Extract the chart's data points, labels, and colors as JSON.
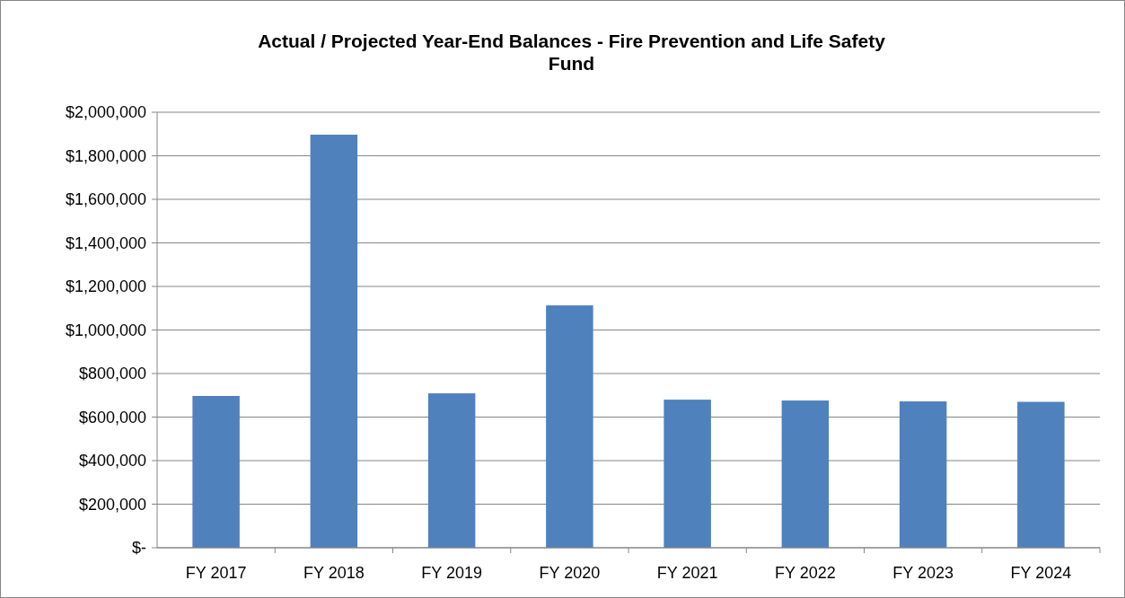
{
  "chart_data": {
    "type": "bar",
    "title": "Actual / Projected Year-End Balances - Fire Prevention and Life Safety Fund",
    "categories": [
      "FY 2017",
      "FY 2018",
      "FY 2019",
      "FY 2020",
      "FY 2021",
      "FY 2022",
      "FY 2023",
      "FY 2024"
    ],
    "values": [
      697000,
      1897000,
      709000,
      1113000,
      680000,
      676000,
      672000,
      670000
    ],
    "color": "#4f81bd",
    "ylim": [
      0,
      2000000
    ],
    "yticks": [
      {
        "value": 0,
        "label": "$-"
      },
      {
        "value": 200000,
        "label": "$200,000"
      },
      {
        "value": 400000,
        "label": "$400,000"
      },
      {
        "value": 600000,
        "label": "$600,000"
      },
      {
        "value": 800000,
        "label": "$800,000"
      },
      {
        "value": 1000000,
        "label": "$1,000,000"
      },
      {
        "value": 1200000,
        "label": "$1,200,000"
      },
      {
        "value": 1400000,
        "label": "$1,400,000"
      },
      {
        "value": 1600000,
        "label": "$1,600,000"
      },
      {
        "value": 1800000,
        "label": "$1,800,000"
      },
      {
        "value": 2000000,
        "label": "$2,000,000"
      }
    ],
    "grid": "y"
  }
}
